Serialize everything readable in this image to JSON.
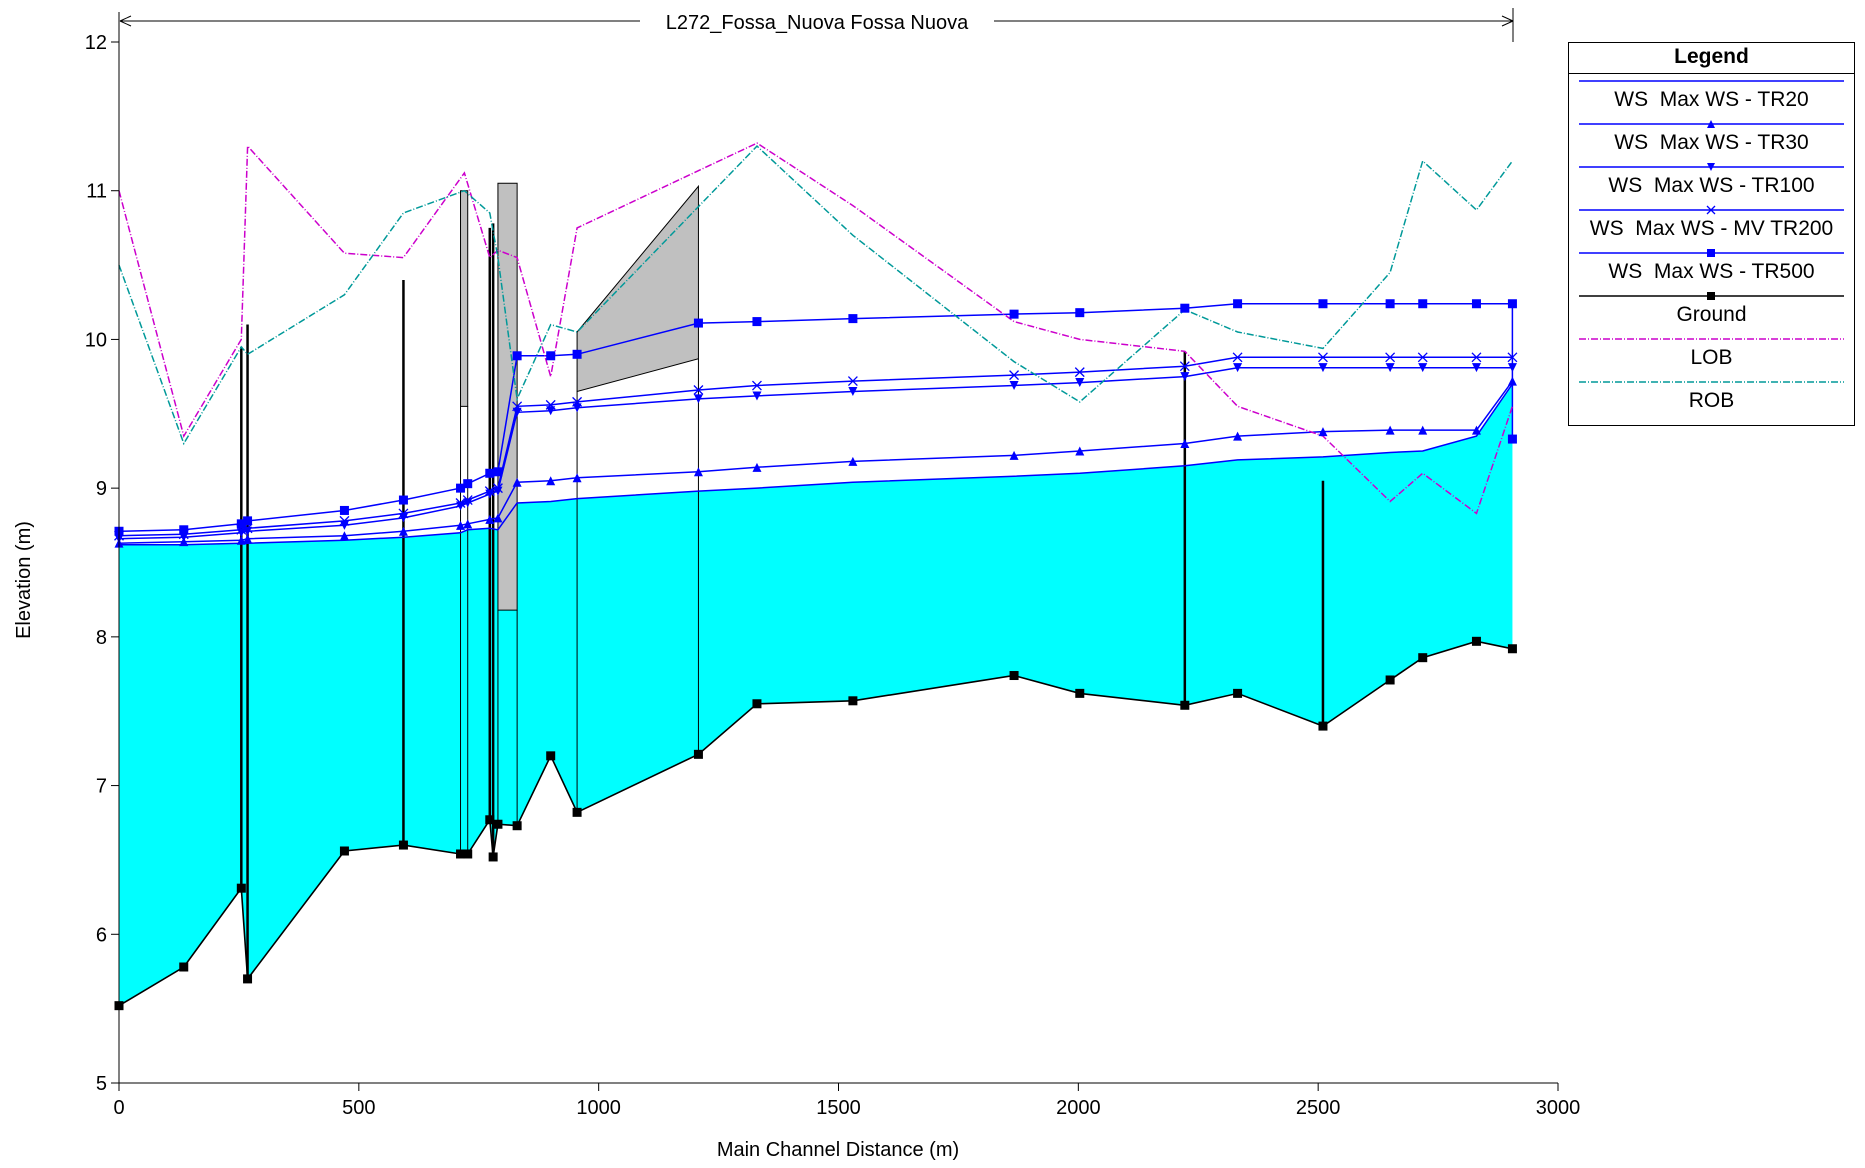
{
  "chart_data": {
    "type": "line",
    "title": "L272_Fossa_Nuova Fossa Nuova",
    "xlabel": "Main Channel Distance (m)",
    "ylabel": "Elevation (m)",
    "xlim": [
      0,
      3000
    ],
    "ylim": [
      5,
      12
    ],
    "xticks": [
      0,
      500,
      1000,
      1500,
      2000,
      2500,
      3000
    ],
    "yticks": [
      5,
      6,
      7,
      8,
      9,
      10,
      11,
      12
    ],
    "water_fill_color": "#00ffff",
    "structure_fill_color": "#c0c0c0",
    "legend": {
      "title": "Legend",
      "position": "right",
      "items": [
        {
          "label": "WS  Max WS - TR20",
          "color": "#0000ff",
          "marker": "none",
          "dash": "solid"
        },
        {
          "label": "WS  Max WS - TR30",
          "color": "#0000ff",
          "marker": "triangle-up",
          "dash": "solid"
        },
        {
          "label": "WS  Max WS - TR100",
          "color": "#0000ff",
          "marker": "triangle-down",
          "dash": "solid"
        },
        {
          "label": "WS  Max WS - MV TR200",
          "color": "#0000ff",
          "marker": "x",
          "dash": "solid"
        },
        {
          "label": "WS  Max WS - TR500",
          "color": "#0000ff",
          "marker": "square",
          "dash": "solid"
        },
        {
          "label": "Ground",
          "color": "#000000",
          "marker": "square",
          "dash": "solid"
        },
        {
          "label": "LOB",
          "color": "#cc00cc",
          "marker": "none",
          "dash": "dashdot"
        },
        {
          "label": "ROB",
          "color": "#009999",
          "marker": "none",
          "dash": "dashdot"
        }
      ]
    },
    "series": [
      {
        "name": "WS  Max WS - TR20",
        "color": "#0000ff",
        "marker": "none",
        "x": [
          0,
          135,
          255,
          268,
          470,
          593,
          712,
          727,
          773,
          790,
          830,
          900,
          955,
          1208,
          1330,
          1530,
          1866,
          2003,
          2222,
          2332,
          2510,
          2650,
          2718,
          2830,
          2905
        ],
        "y": [
          8.62,
          8.62,
          8.63,
          8.63,
          8.65,
          8.67,
          8.7,
          8.72,
          8.73,
          8.72,
          8.9,
          8.91,
          8.93,
          8.98,
          9.0,
          9.04,
          9.08,
          9.1,
          9.15,
          9.19,
          9.21,
          9.24,
          9.25,
          9.35,
          9.7
        ]
      },
      {
        "name": "WS  Max WS - TR30",
        "color": "#0000ff",
        "marker": "triangle-up",
        "x": [
          0,
          135,
          255,
          268,
          470,
          593,
          712,
          727,
          773,
          790,
          830,
          900,
          955,
          1208,
          1330,
          1530,
          1866,
          2003,
          2222,
          2332,
          2510,
          2650,
          2718,
          2830,
          2905
        ],
        "y": [
          8.63,
          8.64,
          8.65,
          8.66,
          8.68,
          8.71,
          8.75,
          8.76,
          8.79,
          8.8,
          9.04,
          9.05,
          9.07,
          9.11,
          9.14,
          9.18,
          9.22,
          9.25,
          9.3,
          9.35,
          9.38,
          9.39,
          9.39,
          9.39,
          9.72
        ]
      },
      {
        "name": "WS  Max WS - TR100",
        "color": "#0000ff",
        "marker": "triangle-down",
        "x": [
          0,
          135,
          255,
          268,
          470,
          593,
          712,
          727,
          773,
          790,
          830,
          900,
          955,
          1208,
          1330,
          1530,
          1866,
          2003,
          2222,
          2332,
          2510,
          2650,
          2718,
          2830,
          2905
        ],
        "y": [
          8.66,
          8.67,
          8.7,
          8.71,
          8.75,
          8.8,
          8.88,
          8.9,
          8.96,
          8.98,
          9.51,
          9.52,
          9.54,
          9.6,
          9.62,
          9.65,
          9.69,
          9.71,
          9.75,
          9.81,
          9.81,
          9.81,
          9.81,
          9.81,
          9.81
        ]
      },
      {
        "name": "WS  Max WS - MV TR200",
        "color": "#0000ff",
        "marker": "x",
        "x": [
          0,
          135,
          255,
          268,
          470,
          593,
          712,
          727,
          773,
          790,
          830,
          900,
          955,
          1208,
          1330,
          1530,
          1866,
          2003,
          2222,
          2332,
          2510,
          2650,
          2718,
          2830,
          2905
        ],
        "y": [
          8.68,
          8.69,
          8.72,
          8.73,
          8.78,
          8.83,
          8.9,
          8.92,
          8.98,
          9.0,
          9.55,
          9.56,
          9.58,
          9.66,
          9.69,
          9.72,
          9.76,
          9.78,
          9.82,
          9.88,
          9.88,
          9.88,
          9.88,
          9.88,
          9.88
        ]
      },
      {
        "name": "WS  Max WS - TR500",
        "color": "#0000ff",
        "marker": "square",
        "x": [
          0,
          135,
          255,
          268,
          470,
          593,
          712,
          727,
          773,
          790,
          830,
          900,
          955,
          1208,
          1330,
          1530,
          1866,
          2003,
          2222,
          2332,
          2510,
          2650,
          2718,
          2830,
          2905,
          2905
        ],
        "y": [
          8.71,
          8.72,
          8.76,
          8.78,
          8.85,
          8.92,
          9.0,
          9.03,
          9.1,
          9.11,
          9.89,
          9.89,
          9.9,
          10.11,
          10.12,
          10.14,
          10.17,
          10.18,
          10.21,
          10.24,
          10.24,
          10.24,
          10.24,
          10.24,
          10.24,
          9.33
        ]
      },
      {
        "name": "Ground",
        "color": "#000000",
        "marker": "square",
        "x": [
          0,
          135,
          255,
          268,
          470,
          593,
          712,
          727,
          773,
          780,
          790,
          830,
          900,
          955,
          1208,
          1330,
          1530,
          1866,
          2003,
          2222,
          2332,
          2510,
          2650,
          2718,
          2830,
          2905
        ],
        "y": [
          5.52,
          5.78,
          6.31,
          5.7,
          6.56,
          6.6,
          6.54,
          6.54,
          6.77,
          6.52,
          6.74,
          6.73,
          7.2,
          6.82,
          7.21,
          7.55,
          7.57,
          7.74,
          7.62,
          7.54,
          7.62,
          7.4,
          7.71,
          7.86,
          7.97,
          7.92
        ]
      },
      {
        "name": "LOB",
        "color": "#cc00cc",
        "marker": "none",
        "x": [
          0,
          135,
          255,
          268,
          470,
          593,
          720,
          773,
          790,
          830,
          900,
          955,
          1330,
          1530,
          1866,
          2003,
          2222,
          2332,
          2510,
          2650,
          2718,
          2830,
          2905
        ],
        "y": [
          11.0,
          9.35,
          10.0,
          11.3,
          10.58,
          10.55,
          11.12,
          10.55,
          10.6,
          10.55,
          9.75,
          10.75,
          11.32,
          10.9,
          10.12,
          10.0,
          9.92,
          9.55,
          9.35,
          8.91,
          9.1,
          8.83,
          9.55
        ]
      },
      {
        "name": "ROB",
        "color": "#009999",
        "marker": "none",
        "x": [
          0,
          135,
          255,
          268,
          470,
          593,
          720,
          773,
          790,
          830,
          900,
          955,
          1330,
          1530,
          1866,
          2003,
          2222,
          2332,
          2510,
          2650,
          2718,
          2830,
          2905
        ],
        "y": [
          10.5,
          9.3,
          9.95,
          9.9,
          10.3,
          10.85,
          11.0,
          10.85,
          10.55,
          9.6,
          10.1,
          10.05,
          11.3,
          10.7,
          9.85,
          9.58,
          10.2,
          10.05,
          9.94,
          10.45,
          11.2,
          10.87,
          11.2
        ]
      }
    ],
    "structures": [
      {
        "kind": "bridge-deck",
        "x": [
          712,
          727
        ],
        "bottom": 9.55,
        "top": 11.0
      },
      {
        "kind": "bridge-deck",
        "x": [
          790,
          830
        ],
        "bottom": 8.18,
        "top": 11.05
      },
      {
        "kind": "bridge-deck",
        "x": [
          955,
          1208
        ],
        "bottom_left": 9.65,
        "bottom_right": 9.87,
        "top_left": 10.05,
        "top_right": 11.03
      }
    ],
    "piers": [
      {
        "x": 255,
        "top": 9.95
      },
      {
        "x": 268,
        "top": 10.1
      },
      {
        "x": 593,
        "top": 10.4
      },
      {
        "x": 773,
        "top": 10.75
      },
      {
        "x": 780,
        "top": 10.78
      },
      {
        "x": 2222,
        "top": 9.92
      },
      {
        "x": 2510,
        "top": 9.05
      }
    ]
  }
}
